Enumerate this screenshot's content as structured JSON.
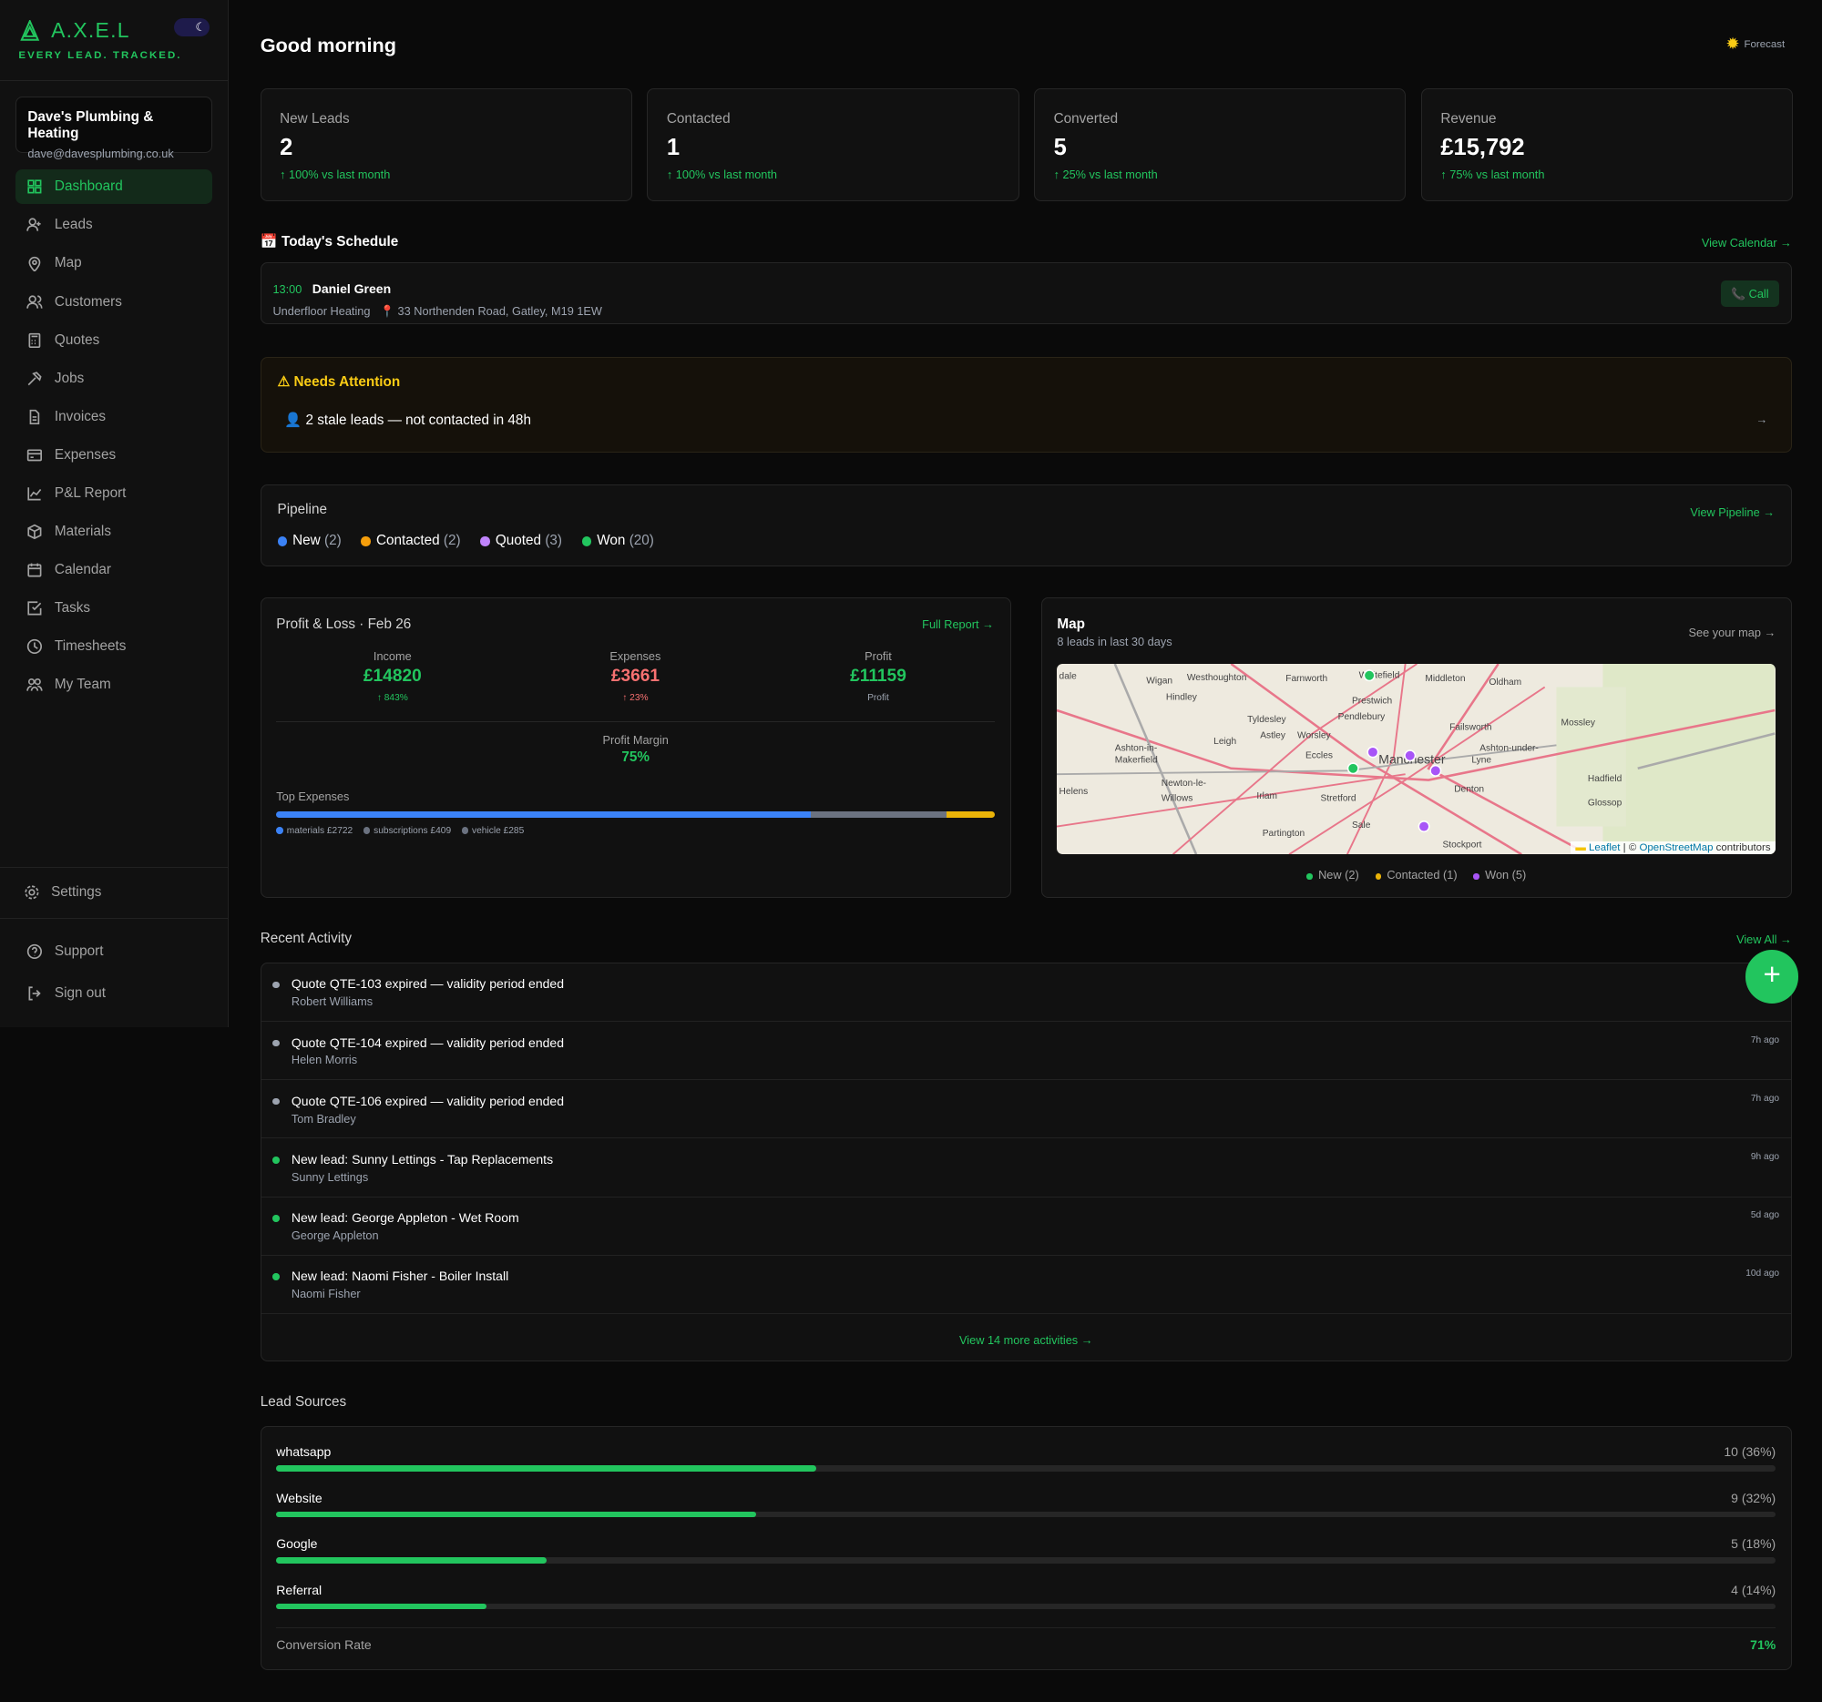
{
  "brand": {
    "name": "A.X.E.L",
    "tagline": "EVERY LEAD. TRACKED.",
    "accent": "#22c55e"
  },
  "account": {
    "name": "Dave's Plumbing & Heating",
    "email": "dave@davesplumbing.co.uk"
  },
  "nav": [
    {
      "label": "Dashboard",
      "icon": "grid-icon",
      "active": true
    },
    {
      "label": "Leads",
      "icon": "user-plus-icon"
    },
    {
      "label": "Map",
      "icon": "map-pin-icon"
    },
    {
      "label": "Customers",
      "icon": "users-icon"
    },
    {
      "label": "Quotes",
      "icon": "calculator-icon"
    },
    {
      "label": "Jobs",
      "icon": "hammer-icon"
    },
    {
      "label": "Invoices",
      "icon": "file-icon"
    },
    {
      "label": "Expenses",
      "icon": "credit-card-icon"
    },
    {
      "label": "P&L Report",
      "icon": "chart-icon"
    },
    {
      "label": "Materials",
      "icon": "box-icon"
    },
    {
      "label": "Calendar",
      "icon": "calendar-icon"
    },
    {
      "label": "Tasks",
      "icon": "check-square-icon"
    },
    {
      "label": "Timesheets",
      "icon": "clock-icon"
    },
    {
      "label": "My Team",
      "icon": "team-icon"
    }
  ],
  "footer_nav": {
    "settings": "Settings",
    "support": "Support",
    "signout": "Sign out"
  },
  "header": {
    "greeting": "Good morning",
    "forecast": "Forecast"
  },
  "stats": [
    {
      "label": "New Leads",
      "value": "2",
      "delta": "↑ 100% vs last month"
    },
    {
      "label": "Contacted",
      "value": "1",
      "delta": "↑ 100% vs last month"
    },
    {
      "label": "Converted",
      "value": "5",
      "delta": "↑ 25% vs last month"
    },
    {
      "label": "Revenue",
      "value": "£15,792",
      "delta": "↑ 75% vs last month"
    }
  ],
  "schedule": {
    "title": "📅 Today's Schedule",
    "link": "View Calendar →",
    "item": {
      "time": "13:00",
      "name": "Daniel Green",
      "service": "Underfloor Heating",
      "address": "📍 33 Northenden Road, Gatley, M19 1EW",
      "call": "📞 Call"
    }
  },
  "attention": {
    "title": "⚠ Needs Attention",
    "item": "👤  2 stale leads — not contacted in 48h",
    "arrow": "→"
  },
  "pipeline": {
    "title": "Pipeline",
    "link": "View Pipeline →",
    "stages": [
      {
        "label": "New",
        "count": "(2)",
        "color": "#3b82f6"
      },
      {
        "label": "Contacted",
        "count": "(2)",
        "color": "#f59e0b"
      },
      {
        "label": "Quoted",
        "count": "(3)",
        "color": "#c084fc"
      },
      {
        "label": "Won",
        "count": "(20)",
        "color": "#22c55e"
      }
    ]
  },
  "pnl": {
    "title": "Profit & Loss · Feb 26",
    "link": "Full Report →",
    "income": {
      "label": "Income",
      "value": "£14820",
      "sub": "↑ 843%"
    },
    "expenses": {
      "label": "Expenses",
      "value": "£3661",
      "sub": "↑ 23%"
    },
    "profit": {
      "label": "Profit",
      "value": "£11159",
      "sub": "Profit"
    },
    "margin_label": "Profit Margin",
    "margin": "75%",
    "top_expenses_label": "Top Expenses",
    "top_expenses": [
      {
        "label": "materials £2722",
        "amount": 2722,
        "color": "#3b82f6"
      },
      {
        "label": "subscriptions £409",
        "amount": 409,
        "color": "#6b7280"
      },
      {
        "label": "vehicle £285",
        "amount": 285,
        "color": "#6b7280"
      }
    ],
    "bar_other_color": "#eab308"
  },
  "map": {
    "title": "Map",
    "subtitle": "8 leads in last 30 days",
    "link": "See your map →",
    "attribution_leaflet": "Leaflet",
    "attribution_rest": "| © ",
    "attribution_osm": "OpenStreetMap",
    "attribution_tail": " contributors",
    "places": [
      "dale",
      "Wigan",
      "Westhoughton",
      "Farnworth",
      "Whitefield",
      "Middleton",
      "Oldham",
      "Hindley",
      "Prestwich",
      "Tyldesley",
      "Pendlebury",
      "Failsworth",
      "Mossley",
      "Leigh",
      "Astley",
      "Worsley",
      "Ashton-in-",
      "Makerfield",
      "Eccles",
      "Manchester",
      "Ashton-under-",
      "Lyne",
      "Hadfield",
      "Newton-le-",
      "Willows",
      "Helens",
      "Irlam",
      "Stretford",
      "Denton",
      "Glossop",
      "Sale",
      "Partington",
      "Stockport"
    ],
    "legend": [
      {
        "label": "New (2)",
        "color": "#22c55e"
      },
      {
        "label": "Contacted (1)",
        "color": "#eab308"
      },
      {
        "label": "Won (5)",
        "color": "#a855f7"
      }
    ]
  },
  "activity": {
    "title": "Recent Activity",
    "link": "View All →",
    "items": [
      {
        "title": "Quote QTE-103 expired — validity period ended",
        "sub": "Robert Williams",
        "time": "",
        "color": "#9ca3af"
      },
      {
        "title": "Quote QTE-104 expired — validity period ended",
        "sub": "Helen Morris",
        "time": "7h ago",
        "color": "#9ca3af"
      },
      {
        "title": "Quote QTE-106 expired — validity period ended",
        "sub": "Tom Bradley",
        "time": "7h ago",
        "color": "#9ca3af"
      },
      {
        "title": "New lead: Sunny Lettings - Tap Replacements",
        "sub": "Sunny Lettings",
        "time": "9h ago",
        "color": "#22c55e"
      },
      {
        "title": "New lead: George Appleton - Wet Room",
        "sub": "George Appleton",
        "time": "5d ago",
        "color": "#22c55e"
      },
      {
        "title": "New lead: Naomi Fisher - Boiler Install",
        "sub": "Naomi Fisher",
        "time": "10d ago",
        "color": "#22c55e"
      }
    ],
    "more": "View 14 more activities →"
  },
  "sources": {
    "title": "Lead Sources",
    "items": [
      {
        "name": "whatsapp",
        "count": "10 (36%)",
        "pct": 36
      },
      {
        "name": "Website",
        "count": "9 (32%)",
        "pct": 32
      },
      {
        "name": "Google",
        "count": "5 (18%)",
        "pct": 18
      },
      {
        "name": "Referral",
        "count": "4 (14%)",
        "pct": 14
      }
    ],
    "conversion_label": "Conversion Rate",
    "conversion": "71%"
  },
  "fab": "+"
}
